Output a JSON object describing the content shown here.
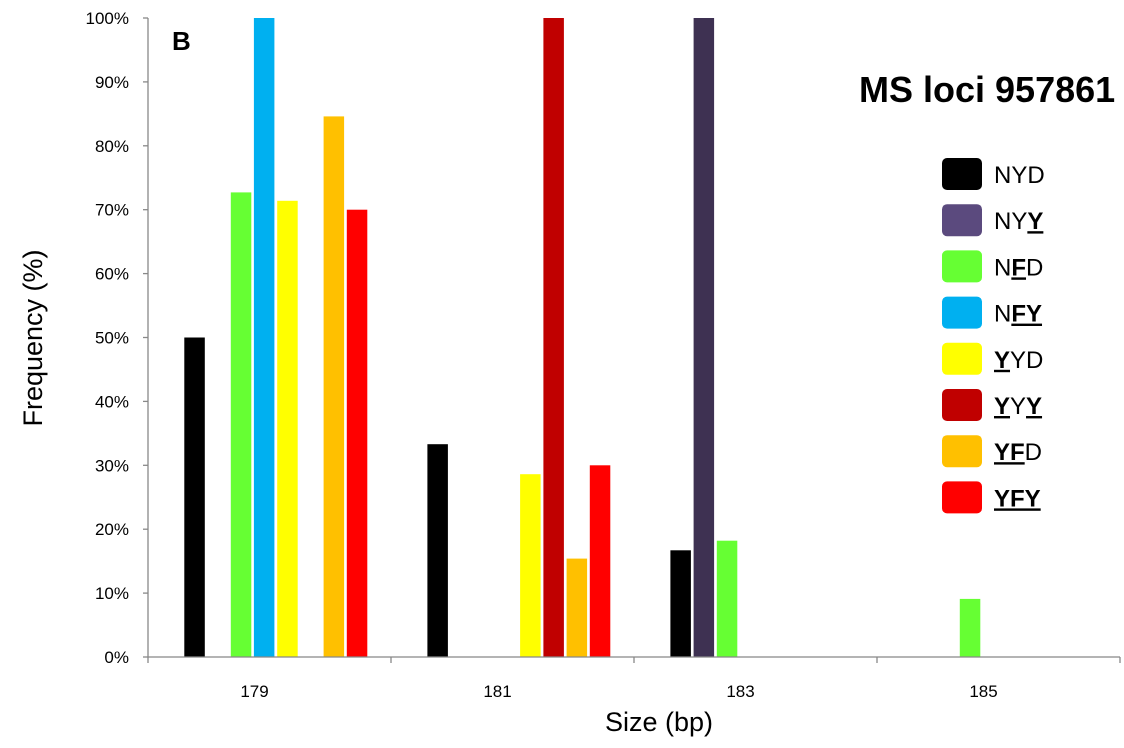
{
  "chart_data": {
    "type": "bar",
    "title": "MS loci 957861",
    "panel_label": "B",
    "xlabel": "Size (bp)",
    "ylabel": "Frequency (%)",
    "categories": [
      "179",
      "181",
      "183",
      "185"
    ],
    "ylim": [
      0,
      100
    ],
    "yticks": [
      "0%",
      "10%",
      "20%",
      "30%",
      "40%",
      "50%",
      "60%",
      "70%",
      "80%",
      "90%",
      "100%"
    ],
    "legend_position": "right",
    "grid": false,
    "series": [
      {
        "name": "NYD",
        "color": "#000000",
        "values": [
          50,
          33.3,
          16.7,
          0
        ],
        "label_parts": [
          {
            "t": "NYD",
            "u": false
          }
        ]
      },
      {
        "name": "NYY",
        "color": "#3e3152",
        "legend_color": "#5b4a7e",
        "values": [
          0,
          0,
          100,
          0
        ],
        "label_parts": [
          {
            "t": "NY",
            "u": false
          },
          {
            "t": "Y",
            "u": true
          }
        ]
      },
      {
        "name": "NFD",
        "color": "#66ff33",
        "values": [
          72.7,
          0,
          18.2,
          9.1
        ],
        "label_parts": [
          {
            "t": "N",
            "u": false
          },
          {
            "t": "F",
            "u": true
          },
          {
            "t": "D",
            "u": false
          }
        ]
      },
      {
        "name": "NFY",
        "color": "#00b0f0",
        "values": [
          100,
          0,
          0,
          0
        ],
        "label_parts": [
          {
            "t": "N",
            "u": false
          },
          {
            "t": "FY",
            "u": true
          }
        ]
      },
      {
        "name": "YYD",
        "color": "#ffff00",
        "values": [
          71.4,
          28.6,
          0,
          0
        ],
        "label_parts": [
          {
            "t": "Y",
            "u": true
          },
          {
            "t": "YD",
            "u": false
          }
        ]
      },
      {
        "name": "YYY",
        "color": "#c00000",
        "values": [
          0,
          100,
          0,
          0
        ],
        "label_parts": [
          {
            "t": "Y",
            "u": true
          },
          {
            "t": "Y",
            "u": false
          },
          {
            "t": "Y",
            "u": true
          }
        ]
      },
      {
        "name": "YFD",
        "color": "#ffc000",
        "values": [
          84.6,
          15.4,
          0,
          0
        ],
        "label_parts": [
          {
            "t": "YF",
            "u": true
          },
          {
            "t": "D",
            "u": false
          }
        ]
      },
      {
        "name": "YFY",
        "color": "#ff0000",
        "values": [
          70,
          30,
          0,
          0
        ],
        "label_parts": [
          {
            "t": "YFY",
            "u": true
          }
        ]
      }
    ]
  }
}
